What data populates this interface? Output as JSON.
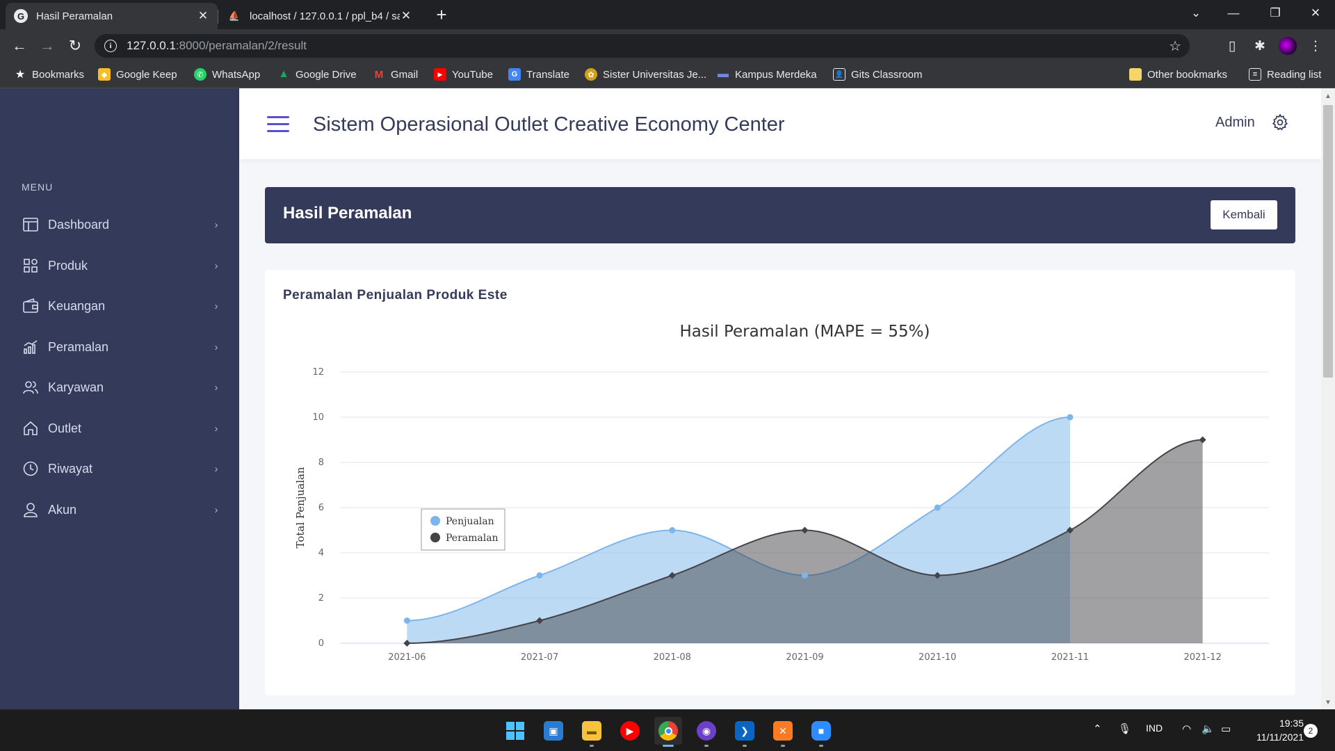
{
  "browser": {
    "tabs": [
      {
        "title": "Hasil Peramalan",
        "active": true
      },
      {
        "title": "localhost / 127.0.0.1 / ppl_b4 / sa",
        "active": false
      }
    ],
    "url_host": "127.0.0.1",
    "url_path": ":8000/peramalan/2/result",
    "bookmarks": [
      {
        "label": "Bookmarks",
        "icon": "star-icon"
      },
      {
        "label": "Google Keep",
        "icon": "google-keep-icon",
        "color": "#f6bf26"
      },
      {
        "label": "WhatsApp",
        "icon": "whatsapp-icon",
        "color": "#25d366"
      },
      {
        "label": "Google Drive",
        "icon": "google-drive-icon",
        "color": "#1fa463"
      },
      {
        "label": "Gmail",
        "icon": "gmail-icon",
        "color": "#ea4335"
      },
      {
        "label": "YouTube",
        "icon": "youtube-icon",
        "color": "#ff0000"
      },
      {
        "label": "Translate",
        "icon": "translate-icon",
        "color": "#4285f4"
      },
      {
        "label": "Sister Universitas Je...",
        "icon": "university-icon",
        "color": "#d4a017"
      },
      {
        "label": "Kampus Merdeka",
        "icon": "kampus-merdeka-icon",
        "color": "#3c5aa8"
      },
      {
        "label": "Gits Classroom",
        "icon": "classroom-icon",
        "color": "#ffffff"
      }
    ],
    "other_bookmarks": "Other bookmarks",
    "reading_list": "Reading list"
  },
  "sidebar": {
    "menu_label": "MENU",
    "items": [
      {
        "label": "Dashboard",
        "icon": "dashboard-icon"
      },
      {
        "label": "Produk",
        "icon": "produk-icon"
      },
      {
        "label": "Keuangan",
        "icon": "wallet-icon"
      },
      {
        "label": "Peramalan",
        "icon": "chart-icon"
      },
      {
        "label": "Karyawan",
        "icon": "users-icon"
      },
      {
        "label": "Outlet",
        "icon": "home-icon"
      },
      {
        "label": "Riwayat",
        "icon": "clock-icon"
      },
      {
        "label": "Akun",
        "icon": "user-icon"
      }
    ]
  },
  "topbar": {
    "title": "Sistem Operasional Outlet Creative Economy Center",
    "user": "Admin"
  },
  "header": {
    "title": "Hasil Peramalan",
    "back_label": "Kembali"
  },
  "card": {
    "title": "Peramalan Penjualan Produk Este"
  },
  "chart_data": {
    "type": "area",
    "title": "Hasil Peramalan (MAPE = 55%)",
    "ylabel": "Total Penjualan",
    "xlabel": "",
    "categories": [
      "2021-06",
      "2021-07",
      "2021-08",
      "2021-09",
      "2021-10",
      "2021-11",
      "2021-12"
    ],
    "ylim": [
      0,
      12
    ],
    "yticks": [
      0,
      2,
      4,
      6,
      8,
      10,
      12
    ],
    "legend_position": "top-left",
    "grid": true,
    "series": [
      {
        "name": "Penjualan",
        "values": [
          1,
          3,
          5,
          3,
          6,
          10,
          null
        ],
        "color": "#7cb5ec"
      },
      {
        "name": "Peramalan",
        "values": [
          0,
          1,
          3,
          5,
          3,
          5,
          9
        ],
        "color": "#434348"
      }
    ]
  },
  "taskbar": {
    "apps": [
      "windows-start-icon",
      "photos-icon",
      "file-explorer-icon",
      "youtube-music-icon",
      "chrome-icon",
      "github-icon",
      "vscode-icon",
      "xampp-icon",
      "zoom-icon"
    ],
    "language": "IND",
    "time": "19:35",
    "date": "11/11/2021",
    "notifications": "2"
  }
}
